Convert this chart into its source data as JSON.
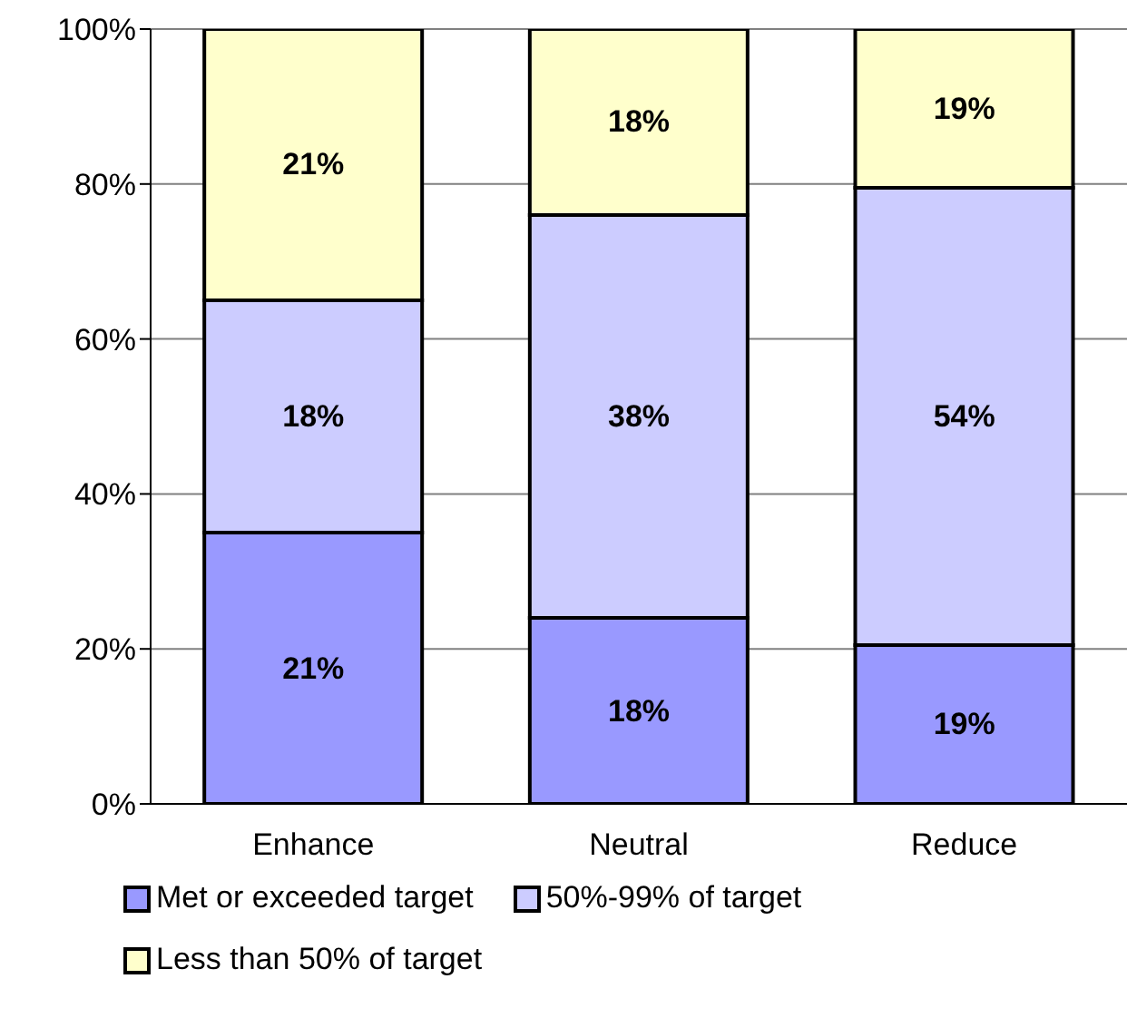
{
  "chart_data": {
    "type": "bar",
    "stacked": true,
    "categories": [
      "Enhance",
      "Neutral",
      "Reduce"
    ],
    "series": [
      {
        "name": "Met or exceeded target",
        "color": "#9999ff",
        "values": [
          35,
          24,
          20.5
        ]
      },
      {
        "name": "50%-99% of target",
        "color": "#ccccff",
        "values": [
          30,
          52,
          59
        ]
      },
      {
        "name": "Less than 50% of target",
        "color": "#ffffcc",
        "values": [
          35,
          24,
          20.5
        ]
      }
    ],
    "annotations": [
      "21%",
      "18%",
      "21%",
      "18%",
      "38%",
      "18%",
      "19%",
      "54%",
      "19%"
    ],
    "ylim": [
      0,
      100
    ],
    "yticks": [
      {
        "value": 0,
        "label": "0%"
      },
      {
        "value": 20,
        "label": "20%"
      },
      {
        "value": 40,
        "label": "40%"
      },
      {
        "value": 60,
        "label": "60%"
      },
      {
        "value": 80,
        "label": "80%"
      },
      {
        "value": 100,
        "label": "100%"
      }
    ],
    "grid": "y",
    "legend": "bottom"
  }
}
